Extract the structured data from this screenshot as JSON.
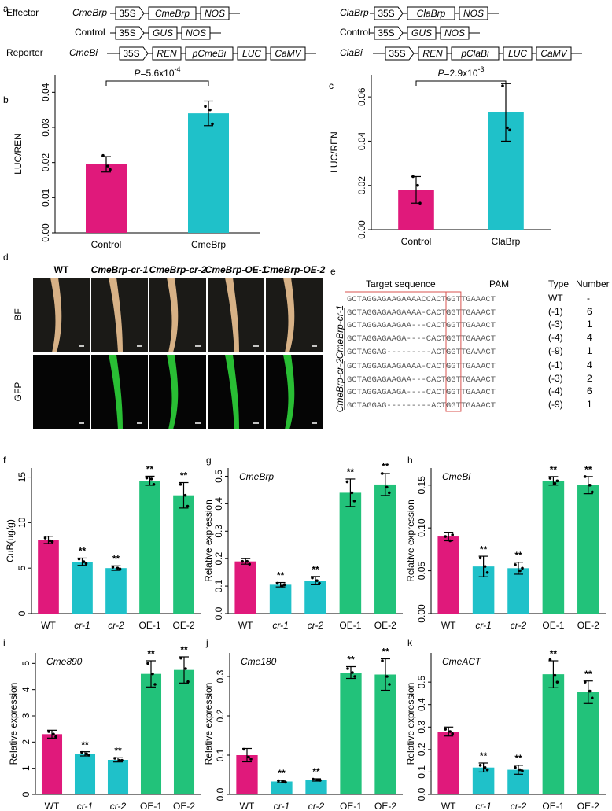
{
  "constructs": {
    "panel": "a",
    "left": [
      {
        "label": "Effector",
        "name": "CmeBrp",
        "boxes": [
          "35S",
          "CmeBrp",
          "NOS"
        ]
      },
      {
        "name": "Control",
        "boxes": [
          "35S",
          "GUS",
          "NOS"
        ]
      },
      {
        "label": "Reporter",
        "name": "CmeBi",
        "boxes": [
          "35S",
          "REN",
          "pCmeBi",
          "LUC",
          "CaMV"
        ]
      }
    ],
    "right": [
      {
        "name": "ClaBrp",
        "boxes": [
          "35S",
          "ClaBrp",
          "NOS"
        ]
      },
      {
        "name": "Control",
        "boxes": [
          "35S",
          "GUS",
          "NOS"
        ]
      },
      {
        "name": "ClaBi",
        "boxes": [
          "35S",
          "REN",
          "pClaBi",
          "LUC",
          "CaMV"
        ]
      }
    ]
  },
  "images": {
    "panel": "d",
    "columns": [
      "WT",
      "CmeBrp-cr-1",
      "CmeBrp-cr-2",
      "CmeBrp-OE-1",
      "CmeBrp-OE-2"
    ],
    "rows": [
      "BF",
      "GFP"
    ]
  },
  "alignment": {
    "panel": "e",
    "headers": [
      "Target sequence",
      "PAM",
      "Type",
      "Number"
    ],
    "wt": {
      "sequence": "GCTAGGAGAAGAAAACCACTGGTTGAAACT",
      "type": "WT",
      "number": "-"
    },
    "groups": [
      {
        "name": "CmeBrp-cr-1",
        "rows": [
          {
            "sequence": "GCTAGGAGAAGAAAA-CACTGGTTGAAACT",
            "type": "(-1)",
            "number": 6
          },
          {
            "sequence": "GCTAGGAGAAGAA---CACTGGTTGAAACT",
            "type": "(-3)",
            "number": 1
          },
          {
            "sequence": "GCTAGGAGAAGA----CACTGGTTGAAACT",
            "type": "(-4)",
            "number": 4
          },
          {
            "sequence": "GCTAGGAG---------ACTGGTTGAAACT",
            "type": "(-9)",
            "number": 1
          }
        ]
      },
      {
        "name": "CmeBrp-cr-2",
        "rows": [
          {
            "sequence": "GCTAGGAGAAGAAAA-CACTGGTTGAAACT",
            "type": "(-1)",
            "number": 4
          },
          {
            "sequence": "GCTAGGAGAAGAA---CACTGGTTGAAACT",
            "type": "(-3)",
            "number": 2
          },
          {
            "sequence": "GCTAGGAGAAGA----CACTGGTTGAAACT",
            "type": "(-4)",
            "number": 6
          },
          {
            "sequence": "GCTAGGAG---------ACTGGTTGAAACT",
            "type": "(-9)",
            "number": 1
          }
        ]
      }
    ]
  },
  "chart_data": [
    {
      "type": "bar",
      "panel": "b",
      "ylabel": "LUC/REN",
      "categories": [
        "Control",
        "CmeBrp"
      ],
      "values": [
        0.0195,
        0.034
      ],
      "errors": [
        0.0022,
        0.0035
      ],
      "points": [
        [
          0.022,
          0.019,
          0.018
        ],
        [
          0.036,
          0.035,
          0.031
        ]
      ],
      "colors": [
        "#e0197b",
        "#1fc1c9"
      ],
      "ylim": [
        0,
        0.045
      ],
      "yticks": [
        {
          "value": 0,
          "label": "0.00"
        },
        0.01,
        0.02,
        0.03,
        0.04
      ],
      "pvalue": {
        "symbol": "P",
        "text": "=5.6x10",
        "exponent": "-4"
      }
    },
    {
      "type": "bar",
      "panel": "c",
      "ylabel": "LUC/REN",
      "categories": [
        "Control",
        "ClaBrp"
      ],
      "values": [
        0.018,
        0.053
      ],
      "errors": [
        0.006,
        0.013
      ],
      "points": [
        [
          0.024,
          0.02,
          0.012
        ],
        [
          0.065,
          0.046,
          0.045
        ]
      ],
      "colors": [
        "#e0197b",
        "#1fc1c9"
      ],
      "ylim": [
        0,
        0.07
      ],
      "yticks": [
        {
          "value": 0,
          "label": "0.00"
        },
        0.02,
        0.04,
        0.06
      ],
      "pvalue": {
        "symbol": "P",
        "text": "=2.9x10",
        "exponent": "-3"
      }
    },
    {
      "type": "bar",
      "panel": "f",
      "ylabel": "CuB(ug/g)",
      "categories": [
        "WT",
        "cr-1",
        "cr-2",
        "OE-1",
        "OE-2"
      ],
      "values": [
        8.1,
        5.7,
        5.0,
        14.6,
        13.0
      ],
      "errors": [
        0.4,
        0.4,
        0.25,
        0.5,
        1.4
      ],
      "points": [
        [
          8.3,
          8.0,
          7.9
        ],
        [
          6.0,
          5.7,
          5.5
        ],
        [
          5.1,
          5.0,
          4.9
        ],
        [
          14.9,
          14.8,
          14.2
        ],
        [
          14.2,
          13.0,
          11.8
        ]
      ],
      "significance": [
        null,
        "**",
        "**",
        "**",
        "**"
      ],
      "colors": [
        "#e0197b",
        "#1fc1c9",
        "#1fc1c9",
        "#22c27a",
        "#22c27a"
      ],
      "ylim": [
        0,
        16
      ],
      "yticks": [
        0,
        5,
        10,
        15
      ]
    },
    {
      "type": "bar",
      "panel": "g",
      "gene": "CmeBrp",
      "ylabel": "Relative expression",
      "categories": [
        "WT",
        "cr-1",
        "cr-2",
        "OE-1",
        "OE-2"
      ],
      "values": [
        0.19,
        0.105,
        0.12,
        0.44,
        0.47
      ],
      "errors": [
        0.01,
        0.008,
        0.015,
        0.05,
        0.04
      ],
      "points": [
        [
          0.19,
          0.19,
          0.18
        ],
        [
          0.11,
          0.1,
          0.105
        ],
        [
          0.13,
          0.12,
          0.11
        ],
        [
          0.48,
          0.44,
          0.41
        ],
        [
          0.51,
          0.46,
          0.44
        ]
      ],
      "significance": [
        null,
        "**",
        "**",
        "**",
        "**"
      ],
      "colors": [
        "#e0197b",
        "#1fc1c9",
        "#1fc1c9",
        "#22c27a",
        "#22c27a"
      ],
      "ylim": [
        0,
        0.53
      ],
      "yticks": [
        {
          "value": 0,
          "label": "0.0"
        },
        0.1,
        0.2,
        0.3,
        0.4,
        0.5
      ]
    },
    {
      "type": "bar",
      "panel": "h",
      "gene": "CmeBi",
      "ylabel": "Relative expression",
      "categories": [
        "WT",
        "cr-1",
        "cr-2",
        "OE-1",
        "OE-2"
      ],
      "values": [
        0.09,
        0.055,
        0.053,
        0.155,
        0.15
      ],
      "errors": [
        0.005,
        0.012,
        0.007,
        0.005,
        0.01
      ],
      "points": [
        [
          0.09,
          0.085,
          0.092
        ],
        [
          0.065,
          0.055,
          0.048
        ],
        [
          0.057,
          0.05,
          0.053
        ],
        [
          0.158,
          0.152,
          0.155
        ],
        [
          0.16,
          0.15,
          0.142
        ]
      ],
      "significance": [
        null,
        "**",
        "**",
        "**",
        "**"
      ],
      "colors": [
        "#e0197b",
        "#1fc1c9",
        "#1fc1c9",
        "#22c27a",
        "#22c27a"
      ],
      "ylim": [
        0,
        0.17
      ],
      "yticks": [
        {
          "value": 0,
          "label": "0.00"
        },
        0.05,
        {
          "value": 0.1,
          "label": "0.10"
        },
        0.15
      ]
    },
    {
      "type": "bar",
      "panel": "i",
      "gene": "Cme890",
      "ylabel": "Relative expression",
      "categories": [
        "WT",
        "cr-1",
        "cr-2",
        "OE-1",
        "OE-2"
      ],
      "values": [
        2.3,
        1.55,
        1.32,
        4.6,
        4.75
      ],
      "errors": [
        0.15,
        0.08,
        0.08,
        0.5,
        0.5
      ],
      "points": [
        [
          2.4,
          2.3,
          2.2
        ],
        [
          1.6,
          1.55,
          1.5
        ],
        [
          1.38,
          1.3,
          1.3
        ],
        [
          5.0,
          4.6,
          4.2
        ],
        [
          5.2,
          4.8,
          4.3
        ]
      ],
      "significance": [
        null,
        "**",
        "**",
        "**",
        "**"
      ],
      "colors": [
        "#e0197b",
        "#1fc1c9",
        "#1fc1c9",
        "#22c27a",
        "#22c27a"
      ],
      "ylim": [
        0,
        5.4
      ],
      "yticks": [
        0,
        1,
        2,
        3,
        4,
        5
      ]
    },
    {
      "type": "bar",
      "panel": "j",
      "gene": "Cme180",
      "ylabel": "Relative expression",
      "categories": [
        "WT",
        "cr-1",
        "cr-2",
        "OE-1",
        "OE-2"
      ],
      "values": [
        0.1,
        0.033,
        0.037,
        0.31,
        0.305
      ],
      "errors": [
        0.017,
        0.003,
        0.003,
        0.015,
        0.04
      ],
      "points": [
        [
          0.115,
          0.095,
          0.09
        ],
        [
          0.035,
          0.033,
          0.031
        ],
        [
          0.039,
          0.037,
          0.036
        ],
        [
          0.32,
          0.31,
          0.3
        ],
        [
          0.34,
          0.3,
          0.28
        ]
      ],
      "significance": [
        null,
        "**",
        "**",
        "**",
        "**"
      ],
      "colors": [
        "#e0197b",
        "#1fc1c9",
        "#1fc1c9",
        "#22c27a",
        "#22c27a"
      ],
      "ylim": [
        0,
        0.36
      ],
      "yticks": [
        {
          "value": 0,
          "label": "0.0"
        },
        0.1,
        0.2,
        0.3
      ]
    },
    {
      "type": "bar",
      "panel": "k",
      "gene": "CmeACT",
      "ylabel": "Relative expression",
      "categories": [
        "WT",
        "cr-1",
        "cr-2",
        "OE-1",
        "OE-2"
      ],
      "values": [
        0.28,
        0.12,
        0.11,
        0.535,
        0.455
      ],
      "errors": [
        0.02,
        0.02,
        0.02,
        0.06,
        0.05
      ],
      "points": [
        [
          0.29,
          0.28,
          0.27
        ],
        [
          0.13,
          0.12,
          0.11
        ],
        [
          0.12,
          0.11,
          0.105
        ],
        [
          0.6,
          0.53,
          0.5
        ],
        [
          0.5,
          0.46,
          0.43
        ]
      ],
      "significance": [
        null,
        "**",
        "**",
        "**",
        "**"
      ],
      "colors": [
        "#e0197b",
        "#1fc1c9",
        "#1fc1c9",
        "#22c27a",
        "#22c27a"
      ],
      "ylim": [
        0,
        0.63
      ],
      "yticks": [
        {
          "value": 0,
          "label": "0.0"
        },
        0.1,
        0.2,
        0.3,
        0.4,
        0.5
      ]
    }
  ]
}
